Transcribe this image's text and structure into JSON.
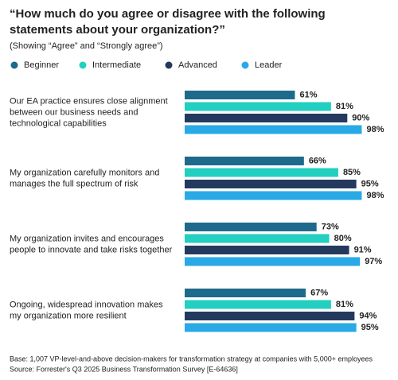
{
  "chart_data": {
    "type": "hbar",
    "title": "“How much do you agree or disagree with the following\nstatements about your organization?”",
    "subtitle": "(Showing “Agree” and “Strongly agree”)",
    "categories": [
      "Our EA practice ensures close alignment\nbetween our business needs and\ntechnological capabilities",
      "My organization carefully monitors and\nmanages the full spectrum of risk",
      "My organization invites and encourages\npeople to innovate and take risks together",
      "Ongoing, widespread innovation makes\nmy organization more resilient"
    ],
    "series": [
      {
        "name": "Beginner",
        "color": "#1e6a8c",
        "values": [
          61,
          66,
          73,
          67
        ],
        "value_labels": [
          "61%",
          "66%",
          "73%",
          "67%"
        ]
      },
      {
        "name": "Intermediate",
        "color": "#22cfc0",
        "values": [
          81,
          85,
          80,
          81
        ],
        "value_labels": [
          "81%",
          "85%",
          "80%",
          "81%"
        ]
      },
      {
        "name": "Advanced",
        "color": "#233a5e",
        "values": [
          90,
          95,
          91,
          94
        ],
        "value_labels": [
          "90%",
          "95%",
          "91%",
          "94%"
        ]
      },
      {
        "name": "Leader",
        "color": "#29a9e6",
        "values": [
          98,
          98,
          97,
          95
        ],
        "value_labels": [
          "98%",
          "98%",
          "97%",
          "95%"
        ]
      }
    ],
    "notes": [
      "Base: 1,007 VP-level-and-above decision-makers for transformation strategy at companies with 5,000+ employees",
      "Source: Forrester's Q3 2025 Business Transformation Survey [E-64636]"
    ]
  }
}
